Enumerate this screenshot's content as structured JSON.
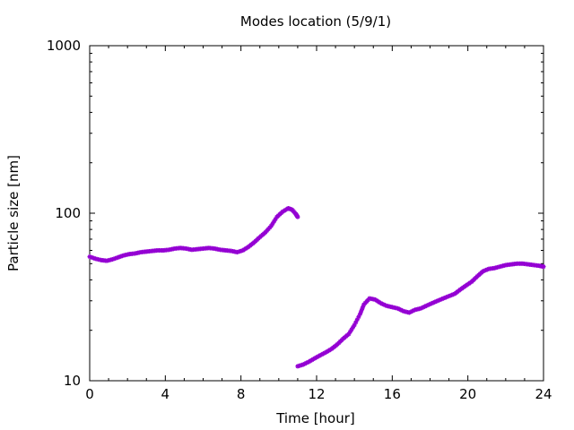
{
  "chart_data": {
    "type": "scatter",
    "title": "Modes location (5/9/1)",
    "xlabel": "Time [hour]",
    "ylabel": "Particle size [nm]",
    "xlim": [
      0,
      24
    ],
    "ylim": [
      10,
      1000
    ],
    "yscale": "log",
    "xticks": [
      0,
      4,
      8,
      12,
      16,
      20,
      24
    ],
    "yticks": [
      10,
      100,
      1000
    ],
    "xtick_labels": [
      "0",
      "4",
      "8",
      "12",
      "16",
      "20",
      "24"
    ],
    "ytick_labels": [
      "10",
      "100",
      "1000"
    ],
    "grid": false,
    "legend": "none",
    "marker_color": "#9400d3",
    "series": [
      {
        "values": [
          [
            0.0,
            55
          ],
          [
            0.3,
            53.5
          ],
          [
            0.6,
            52.5
          ],
          [
            0.9,
            52
          ],
          [
            1.2,
            53
          ],
          [
            1.5,
            54.5
          ],
          [
            1.8,
            56
          ],
          [
            2.1,
            57
          ],
          [
            2.4,
            57.5
          ],
          [
            2.7,
            58.5
          ],
          [
            3.0,
            59
          ],
          [
            3.3,
            59.5
          ],
          [
            3.6,
            60
          ],
          [
            3.9,
            60
          ],
          [
            4.2,
            60.5
          ],
          [
            4.5,
            61.5
          ],
          [
            4.8,
            62
          ],
          [
            5.1,
            61.5
          ],
          [
            5.4,
            60.5
          ],
          [
            5.7,
            61
          ],
          [
            6.0,
            61.5
          ],
          [
            6.3,
            62
          ],
          [
            6.6,
            61.5
          ],
          [
            6.9,
            60.5
          ],
          [
            7.2,
            60
          ],
          [
            7.5,
            59.5
          ],
          [
            7.8,
            58.5
          ],
          [
            8.1,
            60
          ],
          [
            8.4,
            63
          ],
          [
            8.7,
            67
          ],
          [
            9.0,
            72
          ],
          [
            9.3,
            77
          ],
          [
            9.6,
            84
          ],
          [
            9.9,
            95
          ],
          [
            10.2,
            102
          ],
          [
            10.5,
            107
          ],
          [
            10.7,
            105
          ],
          [
            10.9,
            99
          ],
          [
            11.0,
            95
          ]
        ]
      },
      {
        "values": [
          [
            11.0,
            12.2
          ],
          [
            11.3,
            12.5
          ],
          [
            11.6,
            13
          ],
          [
            11.9,
            13.6
          ],
          [
            12.2,
            14.2
          ],
          [
            12.5,
            14.8
          ],
          [
            12.8,
            15.5
          ],
          [
            13.1,
            16.5
          ],
          [
            13.4,
            17.8
          ],
          [
            13.7,
            19
          ],
          [
            14.0,
            21.5
          ],
          [
            14.3,
            25
          ],
          [
            14.5,
            28.5
          ],
          [
            14.8,
            31
          ],
          [
            15.1,
            30.5
          ],
          [
            15.4,
            29
          ],
          [
            15.7,
            28
          ],
          [
            16.0,
            27.5
          ],
          [
            16.3,
            27
          ],
          [
            16.6,
            26
          ],
          [
            16.9,
            25.5
          ],
          [
            17.2,
            26.5
          ],
          [
            17.5,
            27
          ],
          [
            17.8,
            28
          ],
          [
            18.1,
            29
          ],
          [
            18.4,
            30
          ],
          [
            18.7,
            31
          ],
          [
            19.0,
            32
          ],
          [
            19.3,
            33
          ],
          [
            19.6,
            35
          ],
          [
            19.9,
            37
          ],
          [
            20.2,
            39
          ],
          [
            20.5,
            42
          ],
          [
            20.8,
            45
          ],
          [
            21.1,
            46.5
          ],
          [
            21.4,
            47
          ],
          [
            21.7,
            48
          ],
          [
            22.0,
            49
          ],
          [
            22.3,
            49.5
          ],
          [
            22.6,
            50
          ],
          [
            22.9,
            50
          ],
          [
            23.2,
            49.5
          ],
          [
            23.5,
            49
          ],
          [
            23.8,
            48.5
          ],
          [
            24.0,
            48
          ]
        ]
      }
    ]
  }
}
